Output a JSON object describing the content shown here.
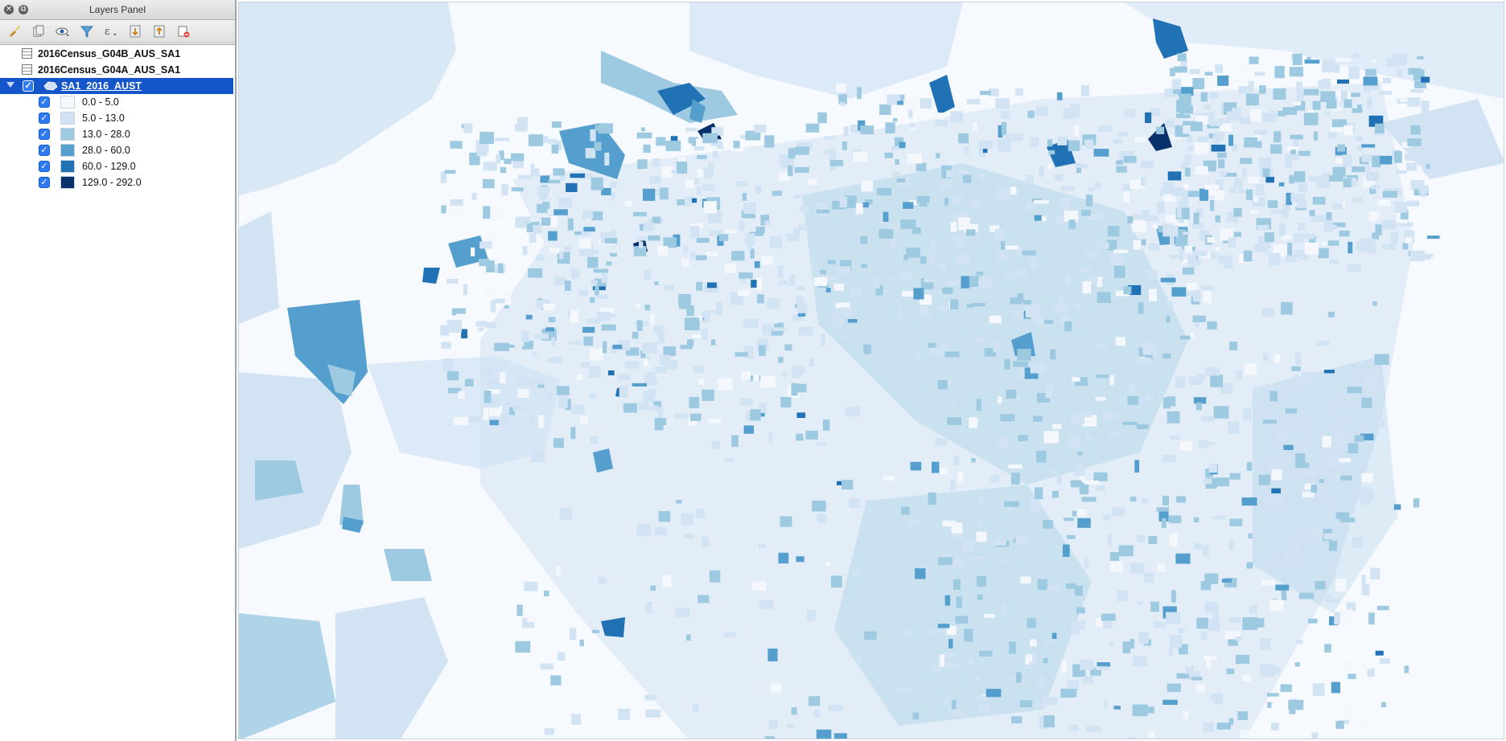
{
  "window": {
    "title": "Layers Panel"
  },
  "toolbar": {
    "buttons": [
      "style-brush-icon",
      "add-group-icon",
      "visibility-eye-icon",
      "filter-icon",
      "filter-expression-icon",
      "expand-all-icon",
      "collapse-all-icon",
      "remove-layer-icon"
    ]
  },
  "layers": [
    {
      "name": "2016Census_G04B_AUS_SA1",
      "type": "table"
    },
    {
      "name": "2016Census_G04A_AUS_SA1",
      "type": "table"
    },
    {
      "name": "SA1_2016_AUST",
      "type": "polygon",
      "checked": true,
      "selected": true
    }
  ],
  "legend": [
    {
      "label": "0.0 - 5.0",
      "color": "#f4f8fd",
      "checked": true
    },
    {
      "label": "5.0 - 13.0",
      "color": "#d2e3f3",
      "checked": true
    },
    {
      "label": "13.0 - 28.0",
      "color": "#9ecae1",
      "checked": true
    },
    {
      "label": "28.0 - 60.0",
      "color": "#559fce",
      "checked": true
    },
    {
      "label": "60.0 - 129.0",
      "color": "#2171b5",
      "checked": true
    },
    {
      "label": "129.0 - 292.0",
      "color": "#08306b",
      "checked": true
    }
  ],
  "colors": {
    "selection": "#1456c9",
    "map_background": "#f6f9fe"
  }
}
